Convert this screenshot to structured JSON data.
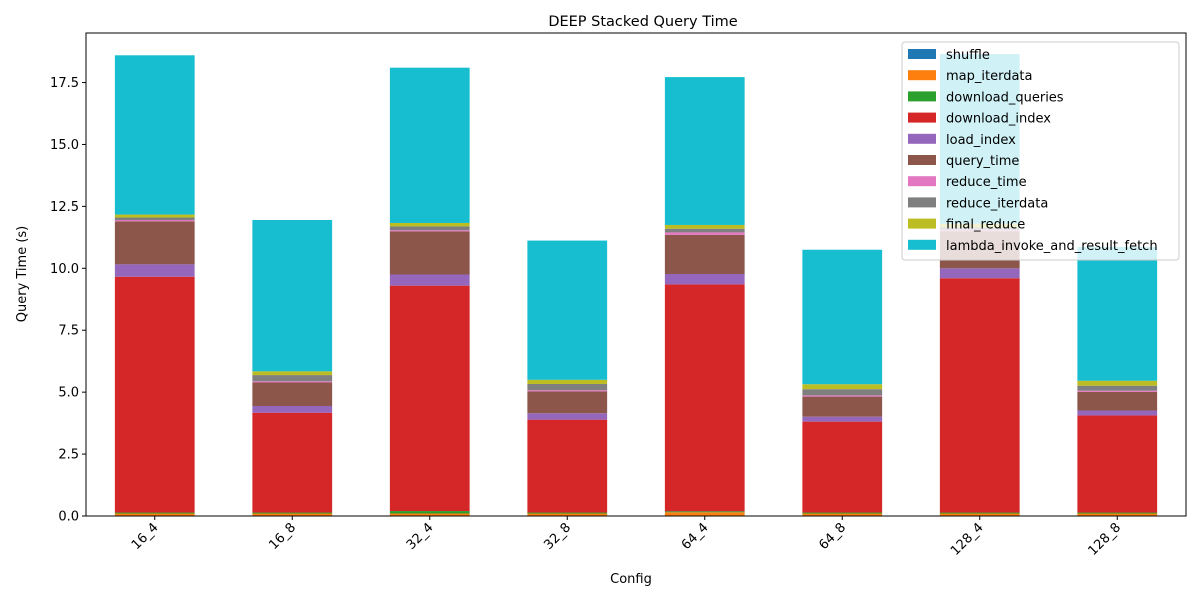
{
  "chart_data": {
    "type": "bar",
    "stacked": true,
    "title": "DEEP Stacked Query Time",
    "xlabel": "Config",
    "ylabel": "Query Time (s)",
    "ylim": [
      0,
      19.5
    ],
    "yticks": [
      "0.0",
      "2.5",
      "5.0",
      "7.5",
      "10.0",
      "12.5",
      "15.0",
      "17.5"
    ],
    "ytick_values": [
      0,
      2.5,
      5,
      7.5,
      10,
      12.5,
      15,
      17.5
    ],
    "grid": false,
    "legend_position": "top-right",
    "categories": [
      "16_4",
      "16_8",
      "32_4",
      "32_8",
      "64_4",
      "64_8",
      "128_4",
      "128_8"
    ],
    "series": [
      {
        "name": "shuffle",
        "color": "#1f77b4",
        "values": [
          0.02,
          0.02,
          0.02,
          0.02,
          0.02,
          0.02,
          0.02,
          0.02
        ]
      },
      {
        "name": "map_iterdata",
        "color": "#ff7f0e",
        "values": [
          0.08,
          0.08,
          0.08,
          0.08,
          0.13,
          0.08,
          0.08,
          0.08
        ]
      },
      {
        "name": "download_queries",
        "color": "#2ca02c",
        "values": [
          0.04,
          0.04,
          0.1,
          0.04,
          0.04,
          0.04,
          0.04,
          0.04
        ]
      },
      {
        "name": "download_index",
        "color": "#d62728",
        "values": [
          9.52,
          4.03,
          9.1,
          3.75,
          9.16,
          3.67,
          9.46,
          3.92
        ]
      },
      {
        "name": "load_index",
        "color": "#9467bd",
        "values": [
          0.5,
          0.27,
          0.45,
          0.26,
          0.42,
          0.2,
          0.4,
          0.2
        ]
      },
      {
        "name": "query_time",
        "color": "#8c564b",
        "values": [
          1.74,
          0.95,
          1.74,
          0.88,
          1.58,
          0.81,
          1.5,
          0.75
        ]
      },
      {
        "name": "reduce_time",
        "color": "#e377c2",
        "values": [
          0.05,
          0.05,
          0.05,
          0.05,
          0.1,
          0.05,
          0.05,
          0.05
        ]
      },
      {
        "name": "reduce_iterdata",
        "color": "#7f7f7f",
        "values": [
          0.1,
          0.25,
          0.15,
          0.25,
          0.15,
          0.25,
          0.1,
          0.2
        ]
      },
      {
        "name": "final_reduce",
        "color": "#bcbd22",
        "values": [
          0.12,
          0.15,
          0.14,
          0.17,
          0.15,
          0.2,
          0.15,
          0.2
        ]
      },
      {
        "name": "lambda_invoke_and_result_fetch",
        "color": "#17becf",
        "values": [
          6.43,
          6.11,
          6.27,
          5.62,
          5.97,
          5.43,
          6.85,
          5.4
        ]
      }
    ]
  }
}
